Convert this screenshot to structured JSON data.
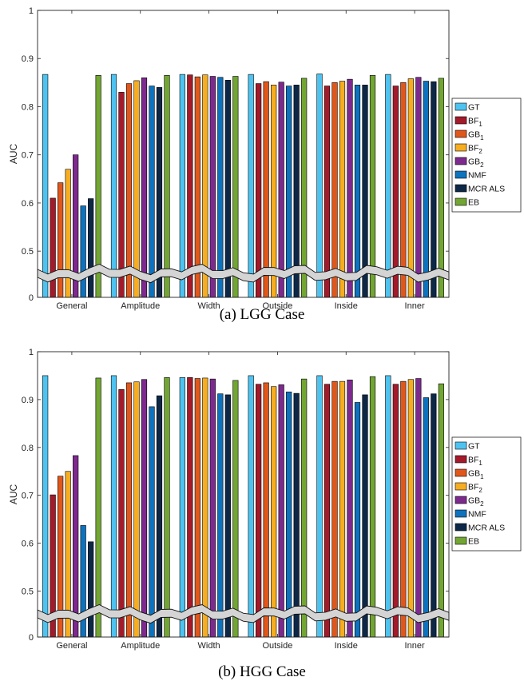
{
  "series_colors": {
    "GT": "#4fc3f0",
    "BF1": "#a31a2a",
    "GB1": "#e0571c",
    "BF2": "#f6ad22",
    "GB2": "#7d2a8e",
    "NMF": "#0f72bd",
    "MCR ALS": "#0d2847",
    "EB": "#72a533"
  },
  "chart_data": [
    {
      "type": "bar",
      "caption": "(a) LGG Case",
      "ylabel": "AUC",
      "ylim": [
        0,
        1
      ],
      "axis_break": "between 0 and ~0.45",
      "yticks": [
        "0",
        "0.5",
        "0.6",
        "0.7",
        "0.8",
        "0.9",
        "1"
      ],
      "categories": [
        "General",
        "Amplitude",
        "Width",
        "Outside",
        "Inside",
        "Inner"
      ],
      "legend_position": "right",
      "series": [
        {
          "name": "GT",
          "legend_main": "GT",
          "legend_sub": "",
          "values": [
            0.867,
            0.867,
            0.867,
            0.867,
            0.868,
            0.867
          ]
        },
        {
          "name": "BF1",
          "legend_main": "BF",
          "legend_sub": "1",
          "values": [
            0.61,
            0.83,
            0.866,
            0.848,
            0.843,
            0.843
          ]
        },
        {
          "name": "GB1",
          "legend_main": "GB",
          "legend_sub": "1",
          "values": [
            0.642,
            0.848,
            0.862,
            0.852,
            0.85,
            0.85
          ]
        },
        {
          "name": "BF2",
          "legend_main": "BF",
          "legend_sub": "2",
          "values": [
            0.67,
            0.854,
            0.866,
            0.845,
            0.853,
            0.858
          ]
        },
        {
          "name": "GB2",
          "legend_main": "GB",
          "legend_sub": "2",
          "values": [
            0.7,
            0.86,
            0.863,
            0.851,
            0.857,
            0.861
          ]
        },
        {
          "name": "NMF",
          "legend_main": "NMF",
          "legend_sub": "",
          "values": [
            0.594,
            0.843,
            0.861,
            0.843,
            0.845,
            0.853
          ]
        },
        {
          "name": "MCR ALS",
          "legend_main": "MCR ALS",
          "legend_sub": "",
          "values": [
            0.609,
            0.84,
            0.855,
            0.845,
            0.845,
            0.852
          ]
        },
        {
          "name": "EB",
          "legend_main": "EB",
          "legend_sub": "",
          "values": [
            0.865,
            0.865,
            0.863,
            0.859,
            0.865,
            0.859
          ]
        }
      ]
    },
    {
      "type": "bar",
      "caption": "(b) HGG Case",
      "ylabel": "AUC",
      "ylim": [
        0,
        1
      ],
      "axis_break": "between 0 and ~0.45",
      "yticks": [
        "0",
        "0.5",
        "0.6",
        "0.7",
        "0.8",
        "0.9",
        "1"
      ],
      "categories": [
        "General",
        "Amplitude",
        "Width",
        "Outside",
        "Inside",
        "Inner"
      ],
      "legend_position": "right",
      "series": [
        {
          "name": "GT",
          "legend_main": "GT",
          "legend_sub": "",
          "values": [
            0.95,
            0.95,
            0.946,
            0.95,
            0.95,
            0.95
          ]
        },
        {
          "name": "BF1",
          "legend_main": "BF",
          "legend_sub": "1",
          "values": [
            0.701,
            0.921,
            0.946,
            0.932,
            0.932,
            0.932
          ]
        },
        {
          "name": "GB1",
          "legend_main": "GB",
          "legend_sub": "1",
          "values": [
            0.74,
            0.935,
            0.944,
            0.935,
            0.938,
            0.938
          ]
        },
        {
          "name": "BF2",
          "legend_main": "BF",
          "legend_sub": "2",
          "values": [
            0.75,
            0.937,
            0.945,
            0.927,
            0.938,
            0.942
          ]
        },
        {
          "name": "GB2",
          "legend_main": "GB",
          "legend_sub": "2",
          "values": [
            0.783,
            0.942,
            0.943,
            0.931,
            0.941,
            0.944
          ]
        },
        {
          "name": "NMF",
          "legend_main": "NMF",
          "legend_sub": "",
          "values": [
            0.637,
            0.885,
            0.912,
            0.916,
            0.894,
            0.904
          ]
        },
        {
          "name": "MCR ALS",
          "legend_main": "MCR ALS",
          "legend_sub": "",
          "values": [
            0.603,
            0.908,
            0.91,
            0.913,
            0.91,
            0.912
          ]
        },
        {
          "name": "EB",
          "legend_main": "EB",
          "legend_sub": "",
          "values": [
            0.945,
            0.946,
            0.94,
            0.943,
            0.948,
            0.933
          ]
        }
      ]
    }
  ]
}
